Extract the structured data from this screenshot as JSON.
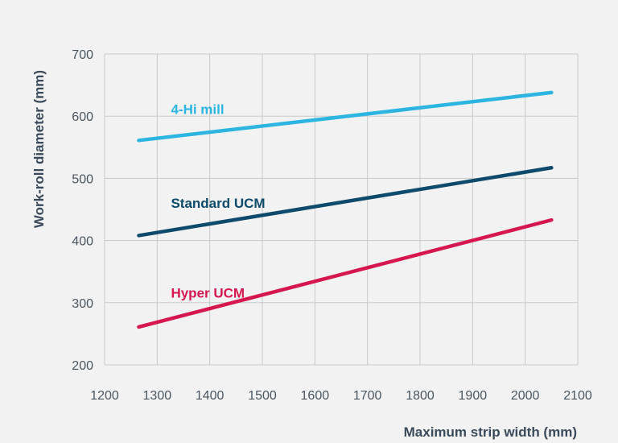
{
  "chart_data": {
    "type": "line",
    "title": "",
    "xlabel": "Maximum strip width (mm)",
    "ylabel": "Work-roll diameter (mm)",
    "xlim": [
      1200,
      2100
    ],
    "ylim": [
      200,
      700
    ],
    "xticks": [
      1200,
      1300,
      1400,
      1500,
      1600,
      1700,
      1800,
      1900,
      2000,
      2100
    ],
    "yticks": [
      200,
      300,
      400,
      500,
      600,
      700
    ],
    "grid": true,
    "legend": "none",
    "series": [
      {
        "name": "4-Hi mill",
        "color": "#2bb5e0",
        "x": [
          1265,
          2050
        ],
        "y": [
          561,
          638
        ]
      },
      {
        "name": "Standard UCM",
        "color": "#0e4a6b",
        "x": [
          1265,
          2050
        ],
        "y": [
          408,
          517
        ]
      },
      {
        "name": "Hyper UCM",
        "color": "#d6174f",
        "x": [
          1265,
          2050
        ],
        "y": [
          261,
          433
        ]
      }
    ]
  }
}
